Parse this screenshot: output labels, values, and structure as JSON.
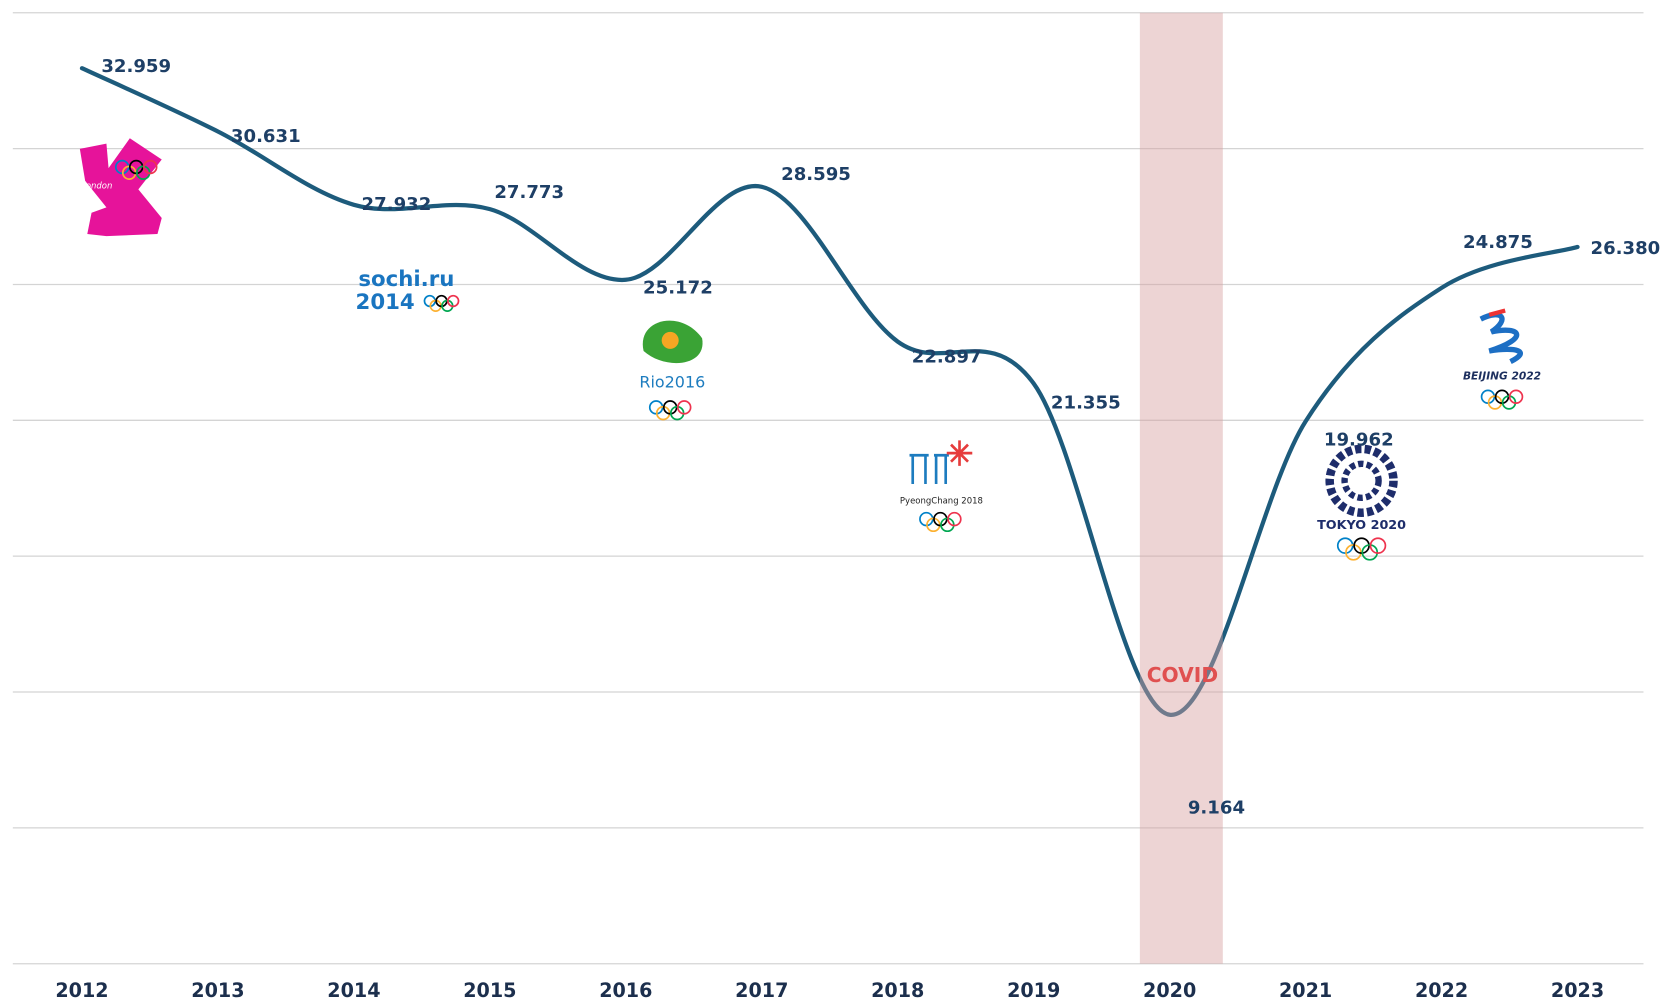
{
  "chart_data": {
    "type": "line",
    "categories": [
      "2012",
      "2013",
      "2014",
      "2015",
      "2016",
      "2017",
      "2018",
      "2019",
      "2020",
      "2021",
      "2022",
      "2023"
    ],
    "series": [
      {
        "color": "#1d5b7c",
        "values": [
          32.959,
          30.631,
          27.932,
          27.773,
          25.172,
          28.595,
          22.897,
          21.355,
          9.164,
          19.962,
          24.875,
          26.38
        ],
        "value_labels": [
          "32.959",
          "30.631",
          "27.932",
          "27.773",
          "25.172",
          "28.595",
          "22.897",
          "21.355",
          "9.164",
          "19.962",
          "24.875",
          "26.380"
        ]
      }
    ],
    "ylim": [
      0,
      35
    ],
    "yticks": [
      0,
      5,
      10,
      15,
      20,
      25,
      30,
      35
    ],
    "grid": true,
    "highlight": {
      "category": "2020",
      "label": "COVID",
      "color": "#e05050",
      "band_color": "rgba(215,160,160,0.45)"
    },
    "logo_texts": [
      "london",
      "sochi.ru",
      "2014",
      "Rio2016",
      "PyeongChang 2018",
      "TOKYO 2020",
      "BEIJING 2022"
    ]
  }
}
